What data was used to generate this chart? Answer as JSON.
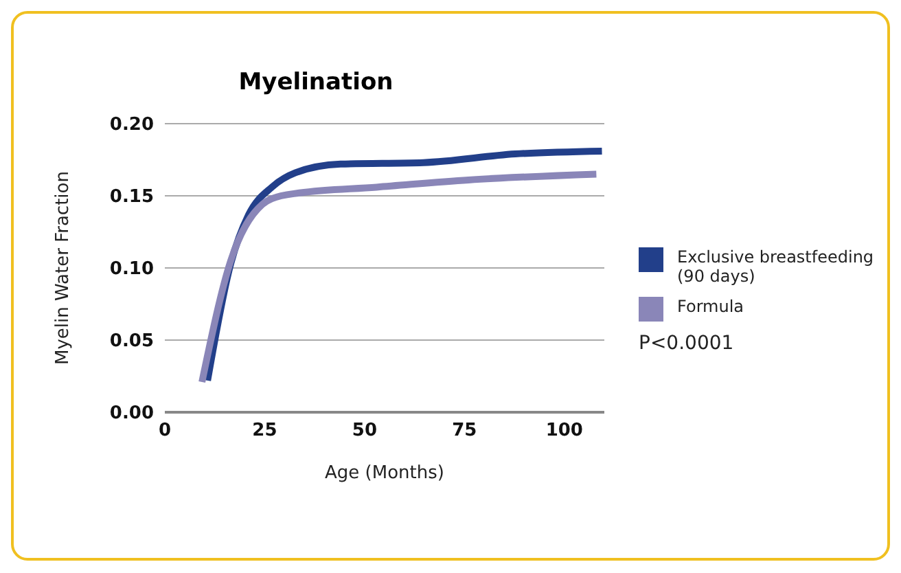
{
  "chart_data": {
    "type": "line",
    "title": "Myelination",
    "xlabel": "Age (Months)",
    "ylabel": "Myelin Water Fraction",
    "xlim": [
      0,
      110
    ],
    "xticks": [
      0,
      25,
      50,
      75,
      100
    ],
    "ylim": [
      0,
      0.2
    ],
    "yticks": [
      {
        "value": 0,
        "label": "0.00"
      },
      {
        "value": 0.05,
        "label": "0.05"
      },
      {
        "value": 0.1,
        "label": "0.10"
      },
      {
        "value": 0.15,
        "label": "0.15"
      },
      {
        "value": 0.2,
        "label": "0.20"
      }
    ],
    "grid": "y",
    "legend": "right",
    "marker": "none",
    "annotations": [
      "P<0.0001"
    ],
    "series": [
      {
        "name": "Exclusive breastfeeding (90 days)",
        "color": "#223f8a",
        "x": [
          10.7,
          16.5,
          21,
          26.8,
          32.7,
          44,
          64.7,
          87.7,
          109.4
        ],
        "values": [
          0.022,
          0.103,
          0.137,
          0.156,
          0.166,
          0.172,
          0.173,
          0.179,
          0.181
        ]
      },
      {
        "name": "Formula",
        "color": "#8a86b8",
        "x": [
          9.3,
          16.5,
          24.4,
          26.8,
          33.7,
          53,
          76,
          108
        ],
        "values": [
          0.021,
          0.105,
          0.144,
          0.148,
          0.152,
          0.156,
          0.161,
          0.165
        ]
      }
    ]
  }
}
